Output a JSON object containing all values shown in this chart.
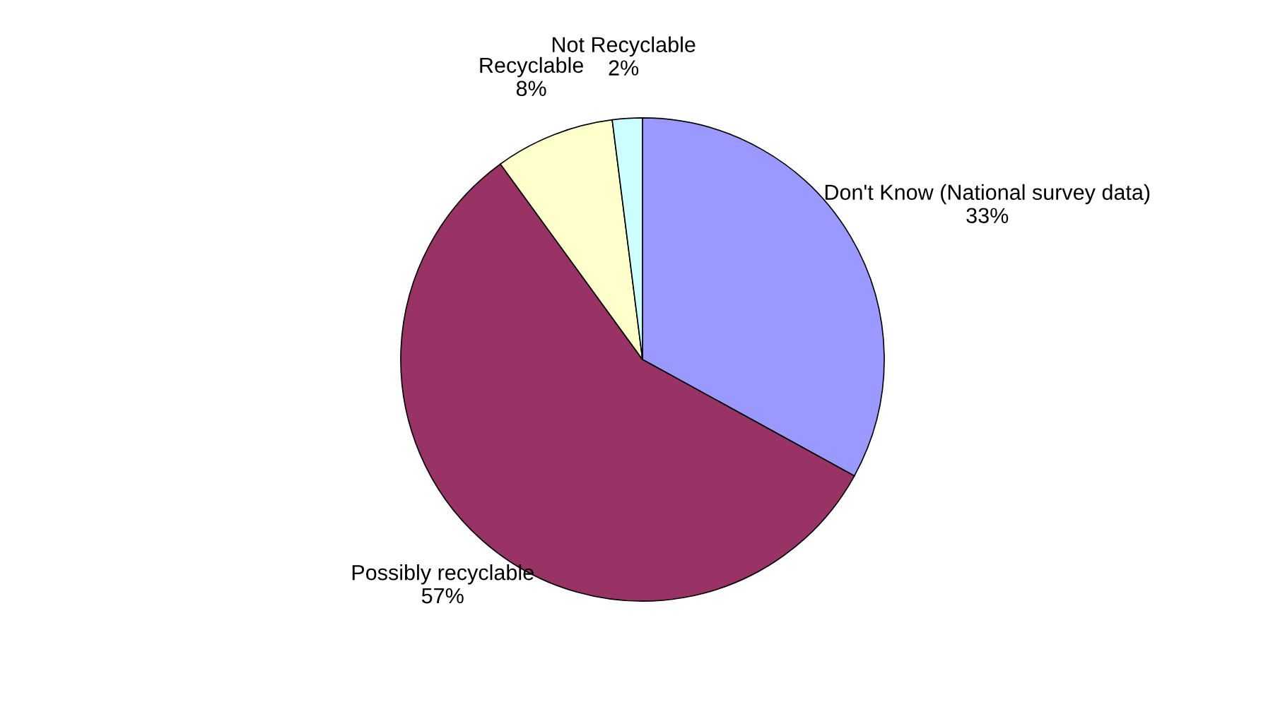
{
  "chart_data": {
    "type": "pie",
    "categories": [
      "Don't Know (National survey data)",
      "Possibly recyclable",
      "Recyclable",
      "Not Recyclable"
    ],
    "values": [
      33,
      57,
      8,
      2
    ],
    "colors": [
      "#9999ff",
      "#993366",
      "#ffffcc",
      "#ccffff"
    ],
    "value_labels": [
      "33%",
      "57%",
      "8%",
      "2%"
    ],
    "legend": false
  }
}
